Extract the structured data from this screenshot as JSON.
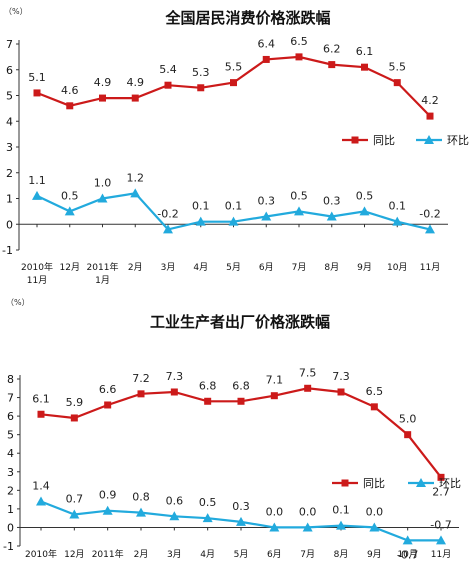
{
  "chart_data": [
    {
      "type": "line",
      "title": "全国居民消费价格涨跌幅",
      "unit_label": "（%）",
      "categories": [
        "2010年\n11月",
        "12月",
        "2011年\n1月",
        "2月",
        "3月",
        "4月",
        "5月",
        "6月",
        "7月",
        "8月",
        "9月",
        "10月",
        "11月"
      ],
      "ylim": [
        -1,
        7
      ],
      "yticks": [
        -1,
        0,
        1,
        2,
        3,
        4,
        5,
        6,
        7
      ],
      "grid": false,
      "legend_position": "right",
      "series": [
        {
          "name": "同比",
          "color": "#cc1a1a",
          "marker": "square",
          "values": [
            5.1,
            4.6,
            4.9,
            4.9,
            5.4,
            5.3,
            5.5,
            6.4,
            6.5,
            6.2,
            6.1,
            5.5,
            4.2
          ],
          "labels": [
            "5.1",
            "4.6",
            "4.9",
            "4.9",
            "5.4",
            "5.3",
            "5.5",
            "6.4",
            "6.5",
            "6.2",
            "6.1",
            "5.5",
            "4.2"
          ]
        },
        {
          "name": "环比",
          "color": "#22aadd",
          "marker": "triangle",
          "values": [
            1.1,
            0.5,
            1.0,
            1.2,
            -0.2,
            0.1,
            0.1,
            0.3,
            0.5,
            0.3,
            0.5,
            0.1,
            -0.2
          ],
          "labels": [
            "1.1",
            "0.5",
            "1.0",
            "1.2",
            "-0.2",
            "0.1",
            "0.1",
            "0.3",
            "0.5",
            "0.3",
            "0.5",
            "0.1",
            "-0.2"
          ]
        }
      ]
    },
    {
      "type": "line",
      "title": "工业生产者出厂价格涨跌幅",
      "unit_label": "（%）",
      "categories": [
        "2010年",
        "12月",
        "2011年",
        "2月",
        "3月",
        "4月",
        "5月",
        "6月",
        "7月",
        "8月",
        "9月",
        "10月",
        "11月"
      ],
      "ylim": [
        -1,
        8
      ],
      "yticks": [
        -1,
        0,
        1,
        2,
        3,
        4,
        5,
        6,
        7,
        8
      ],
      "grid": false,
      "legend_position": "right",
      "series": [
        {
          "name": "同比",
          "color": "#cc1a1a",
          "marker": "square",
          "values": [
            6.1,
            5.9,
            6.6,
            7.2,
            7.3,
            6.8,
            6.8,
            7.1,
            7.5,
            7.3,
            6.5,
            5.0,
            2.7
          ],
          "labels": [
            "6.1",
            "5.9",
            "6.6",
            "7.2",
            "7.3",
            "6.8",
            "6.8",
            "7.1",
            "7.5",
            "7.3",
            "6.5",
            "5.0",
            "2.7"
          ]
        },
        {
          "name": "环比",
          "color": "#22aadd",
          "marker": "triangle",
          "values": [
            1.4,
            0.7,
            0.9,
            0.8,
            0.6,
            0.5,
            0.3,
            0.0,
            0.0,
            0.1,
            0.0,
            -0.7,
            -0.7
          ],
          "labels": [
            "1.4",
            "0.7",
            "0.9",
            "0.8",
            "0.6",
            "0.5",
            "0.3",
            "0.0",
            "0.0",
            "0.1",
            "0.0",
            "-0.7",
            "-0.7"
          ]
        }
      ]
    }
  ]
}
